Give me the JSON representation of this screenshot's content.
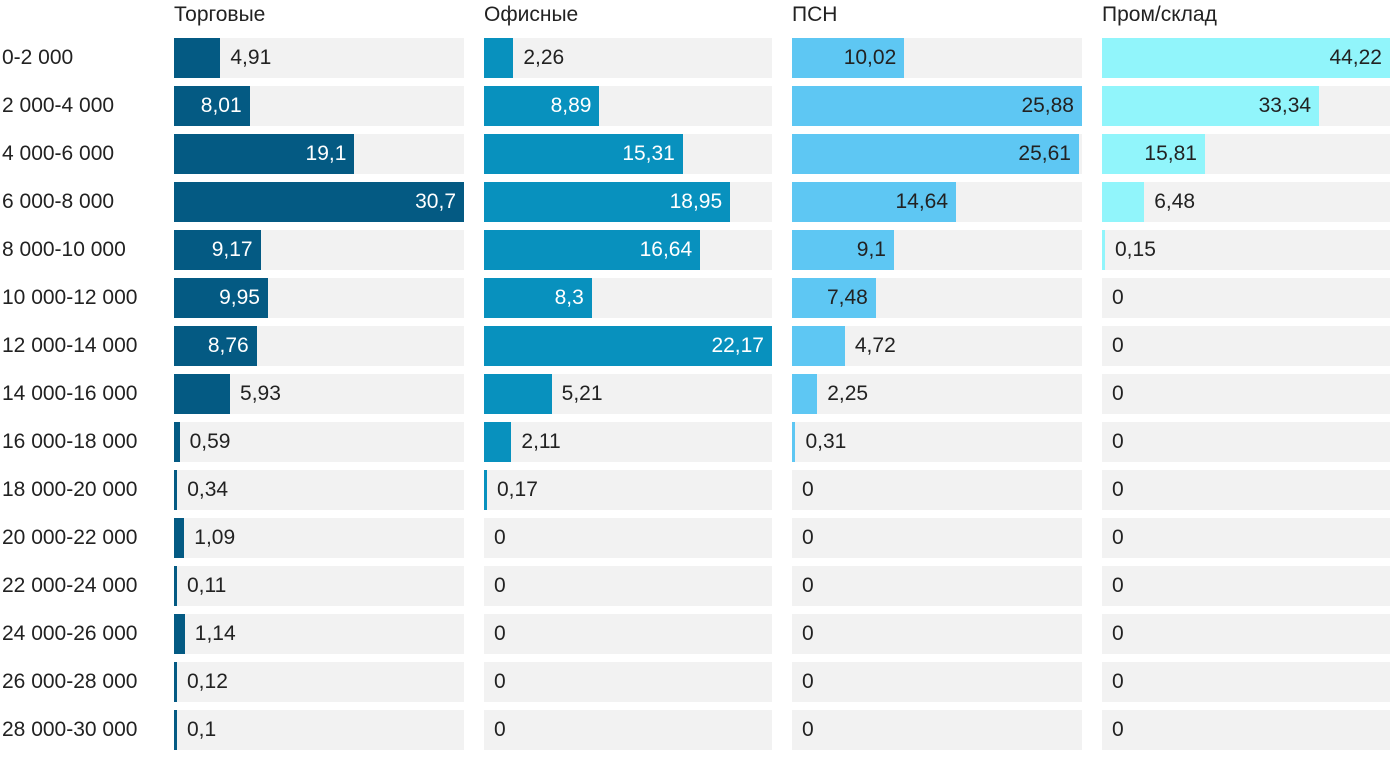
{
  "chart_data": {
    "type": "bar",
    "orientation": "horizontal",
    "layout": "small-multiples",
    "categories": [
      "0-2 000",
      "2 000-4 000",
      "4 000-6 000",
      "6 000-8 000",
      "8 000-10 000",
      "10 000-12 000",
      "12 000-14 000",
      "14 000-16 000",
      "16 000-18 000",
      "18 000-20 000",
      "20 000-22 000",
      "22 000-24 000",
      "24 000-26 000",
      "26 000-28 000",
      "28 000-30 000"
    ],
    "series": [
      {
        "name": "Торговые",
        "color": "#045a83",
        "max": 30.7,
        "values": [
          4.91,
          8.01,
          19.1,
          30.7,
          9.17,
          9.95,
          8.76,
          5.93,
          0.59,
          0.34,
          1.09,
          0.11,
          1.14,
          0.12,
          0.1
        ],
        "labels": [
          "4,91",
          "8,01",
          "19,1",
          "30,7",
          "9,17",
          "9,95",
          "8,76",
          "5,93",
          "0,59",
          "0,34",
          "1,09",
          "0,11",
          "1,14",
          "0,12",
          "0,1"
        ]
      },
      {
        "name": "Офисные",
        "color": "#0891be",
        "max": 22.17,
        "values": [
          2.26,
          8.89,
          15.31,
          18.95,
          16.64,
          8.3,
          22.17,
          5.21,
          2.11,
          0.17,
          0,
          0,
          0,
          0,
          0
        ],
        "labels": [
          "2,26",
          "8,89",
          "15,31",
          "18,95",
          "16,64",
          "8,3",
          "22,17",
          "5,21",
          "2,11",
          "0,17",
          "0",
          "0",
          "0",
          "0",
          "0"
        ]
      },
      {
        "name": "ПСН",
        "color": "#5ec7f3",
        "max": 25.88,
        "values": [
          10.02,
          25.88,
          25.61,
          14.64,
          9.1,
          7.48,
          4.72,
          2.25,
          0.31,
          0,
          0,
          0,
          0,
          0,
          0
        ],
        "labels": [
          "10,02",
          "25,88",
          "25,61",
          "14,64",
          "9,1",
          "7,48",
          "4,72",
          "2,25",
          "0,31",
          "0",
          "0",
          "0",
          "0",
          "0",
          "0"
        ]
      },
      {
        "name": "Пром/склад",
        "color": "#91f5fb",
        "max": 44.22,
        "values": [
          44.22,
          33.34,
          15.81,
          6.48,
          0.15,
          0,
          0,
          0,
          0,
          0,
          0,
          0,
          0,
          0,
          0
        ],
        "labels": [
          "44,22",
          "33,34",
          "15,81",
          "6,48",
          "0,15",
          "0",
          "0",
          "0",
          "0",
          "0",
          "0",
          "0",
          "0",
          "0",
          "0"
        ]
      }
    ],
    "grid": false,
    "legend": "none"
  }
}
